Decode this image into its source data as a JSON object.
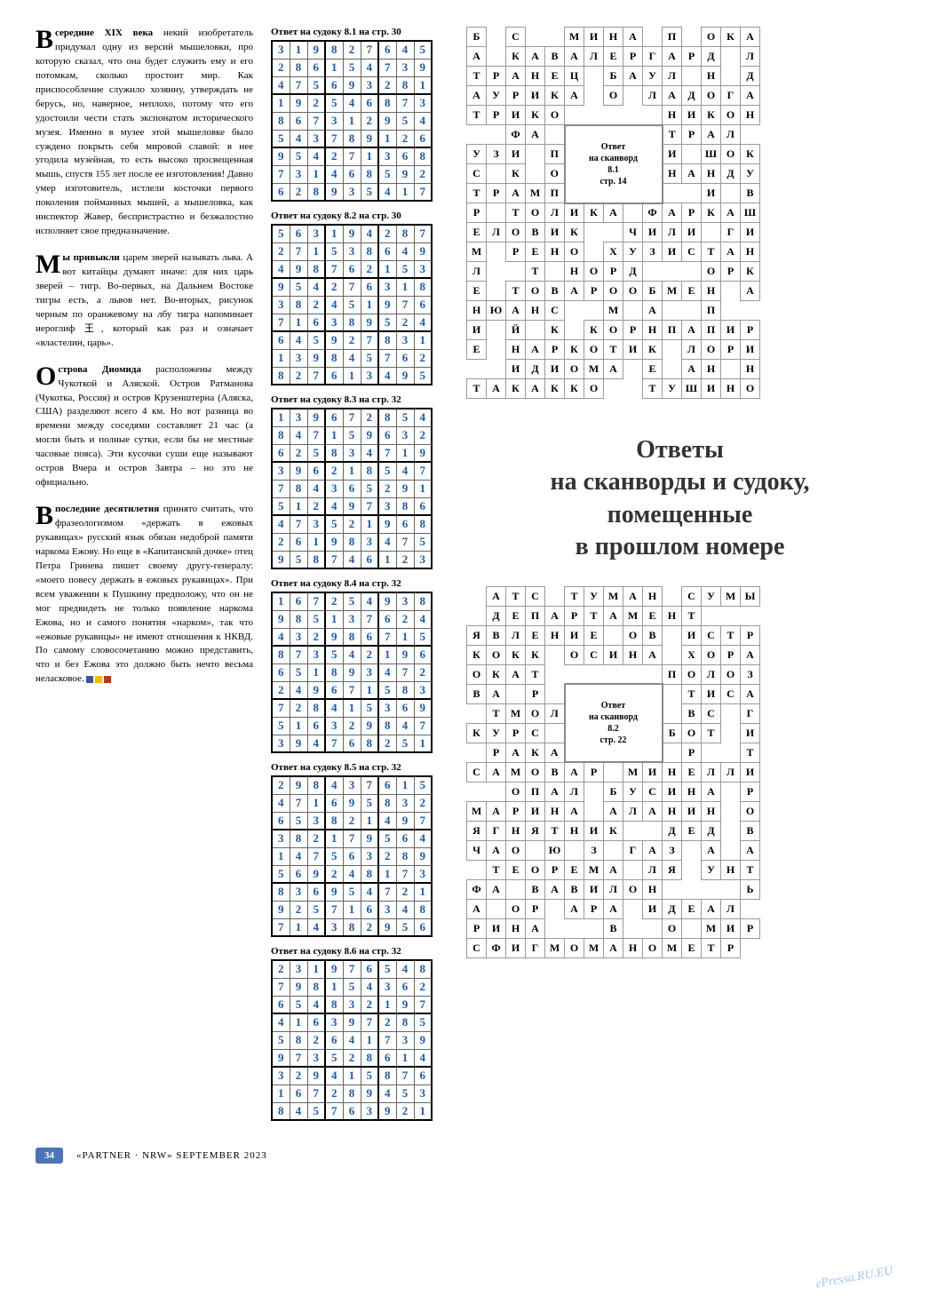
{
  "articles": [
    {
      "bold": "середине XIX века",
      "text": " некий изобретатель придумал одну из версий мышеловки, про которую сказал, что она будет служить ему и его потомкам, сколько простоит мир. Как приспособление служило хозяину, утверждать не берусь, но, наверное, неплохо, потому что его удостоили чести стать экспонатом исторического музея. Именно в музее этой мышеловке было суждено покрыть себя мировой славой: в нее угодила музейная, то есть высоко просвещенная мышь, спустя 155 лет после ее изготовления! Давно умер изготовитель, истлели косточки первого поколения пойманных мышей, а мышеловка, как инспектор Жавер, беспристрастно и безжалостно исполняет свое предназначение.",
      "dropcap": "В"
    },
    {
      "bold": "ы привыкли",
      "text": " царем зверей называть льва. А вот китайцы думают иначе: для них царь зверей – тигр. Во-первых, на Дальнем Востоке тигры есть, а львов нет. Во-вторых, рисунок черным по оранжевому на лбу тигра напоминает иероглиф 王, который как раз и означает «властелин, царь».",
      "dropcap": "М"
    },
    {
      "bold": "строва Диомида",
      "text": " расположены между Чукоткой и Аляской. Остров Ратманова (Чукотка, Россия) и остров Крузенштерна (Аляска, США) разделяют всего 4 км. Но вот разница во времени между соседями составляет 21 час (а могли быть и полные сутки, если бы не местные часовые пояса). Эти кусочки суши еще называют остров Вчера и остров Завтра – но это не официально.",
      "dropcap": "О"
    },
    {
      "bold": "последние десятилетия",
      "text": " принято считать, что фразеологизмом «держать в ежовых рукавицах» русский язык обязан недоброй памяти наркома Ежову. Но еще в «Капитанской дочке» отец Петра Гринева пишет своему другу-генералу: «моего повесу держать в ежовых рукавицах». При всем уважении к Пушкину предположу, что он не мог предвидеть не только появление наркома Ежова, но и самого понятия «нарком», так что «ежовые рукавицы» не имеют отношения к НКВД. По самому словосочетанию можно представить, что и без Ежова это должно быть нечто весьма неласковое.",
      "dropcap": "В",
      "end": true
    }
  ],
  "sudokus": [
    {
      "title": "Ответ на судоку 8.1 на стр. 30",
      "grid": [
        [
          3,
          1,
          9,
          8,
          2,
          7,
          6,
          4,
          5
        ],
        [
          2,
          8,
          6,
          1,
          5,
          4,
          7,
          3,
          9
        ],
        [
          4,
          7,
          5,
          6,
          9,
          3,
          2,
          8,
          1
        ],
        [
          1,
          9,
          2,
          5,
          4,
          6,
          8,
          7,
          3
        ],
        [
          8,
          6,
          7,
          3,
          1,
          2,
          9,
          5,
          4
        ],
        [
          5,
          4,
          3,
          7,
          8,
          9,
          1,
          2,
          6
        ],
        [
          9,
          5,
          4,
          2,
          7,
          1,
          3,
          6,
          8
        ],
        [
          7,
          3,
          1,
          4,
          6,
          8,
          5,
          9,
          2
        ],
        [
          6,
          2,
          8,
          9,
          3,
          5,
          4,
          1,
          7
        ]
      ]
    },
    {
      "title": "Ответ на судоку 8.2 на стр. 30",
      "grid": [
        [
          5,
          6,
          3,
          1,
          9,
          4,
          2,
          8,
          7
        ],
        [
          2,
          7,
          1,
          5,
          3,
          8,
          6,
          4,
          9
        ],
        [
          4,
          9,
          8,
          7,
          6,
          2,
          1,
          5,
          3
        ],
        [
          9,
          5,
          4,
          2,
          7,
          6,
          3,
          1,
          8
        ],
        [
          3,
          8,
          2,
          4,
          5,
          1,
          9,
          7,
          6
        ],
        [
          7,
          1,
          6,
          3,
          8,
          9,
          5,
          2,
          4
        ],
        [
          6,
          4,
          5,
          9,
          2,
          7,
          8,
          3,
          1
        ],
        [
          1,
          3,
          9,
          8,
          4,
          5,
          7,
          6,
          2
        ],
        [
          8,
          2,
          7,
          6,
          1,
          3,
          4,
          9,
          5
        ]
      ]
    },
    {
      "title": "Ответ на судоку 8.3 на стр. 32",
      "grid": [
        [
          1,
          3,
          9,
          6,
          7,
          2,
          8,
          5,
          4
        ],
        [
          8,
          4,
          7,
          1,
          5,
          9,
          6,
          3,
          2
        ],
        [
          6,
          2,
          5,
          8,
          3,
          4,
          7,
          1,
          9
        ],
        [
          3,
          9,
          6,
          2,
          1,
          8,
          5,
          4,
          7
        ],
        [
          7,
          8,
          4,
          3,
          6,
          5,
          2,
          9,
          1
        ],
        [
          5,
          1,
          2,
          4,
          9,
          7,
          3,
          8,
          6
        ],
        [
          4,
          7,
          3,
          5,
          2,
          1,
          9,
          6,
          8
        ],
        [
          2,
          6,
          1,
          9,
          8,
          3,
          4,
          7,
          5
        ],
        [
          9,
          5,
          8,
          7,
          4,
          6,
          1,
          2,
          3
        ]
      ]
    },
    {
      "title": "Ответ на судоку 8.4 на стр. 32",
      "grid": [
        [
          1,
          6,
          7,
          2,
          5,
          4,
          9,
          3,
          8
        ],
        [
          9,
          8,
          5,
          1,
          3,
          7,
          6,
          2,
          4
        ],
        [
          4,
          3,
          2,
          9,
          8,
          6,
          7,
          1,
          5
        ],
        [
          8,
          7,
          3,
          5,
          4,
          2,
          1,
          9,
          6
        ],
        [
          6,
          5,
          1,
          8,
          9,
          3,
          4,
          7,
          2
        ],
        [
          2,
          4,
          9,
          6,
          7,
          1,
          5,
          8,
          3
        ],
        [
          7,
          2,
          8,
          4,
          1,
          5,
          3,
          6,
          9
        ],
        [
          5,
          1,
          6,
          3,
          2,
          9,
          8,
          4,
          7
        ],
        [
          3,
          9,
          4,
          7,
          6,
          8,
          2,
          5,
          1
        ]
      ]
    },
    {
      "title": "Ответ на судоку 8.5 на стр. 32",
      "grid": [
        [
          2,
          9,
          8,
          4,
          3,
          7,
          6,
          1,
          5
        ],
        [
          4,
          7,
          1,
          6,
          9,
          5,
          8,
          3,
          2
        ],
        [
          6,
          5,
          3,
          8,
          2,
          1,
          4,
          9,
          7
        ],
        [
          3,
          8,
          2,
          1,
          7,
          9,
          5,
          6,
          4
        ],
        [
          1,
          4,
          7,
          5,
          6,
          3,
          2,
          8,
          9
        ],
        [
          5,
          6,
          9,
          2,
          4,
          8,
          1,
          7,
          3
        ],
        [
          8,
          3,
          6,
          9,
          5,
          4,
          7,
          2,
          1
        ],
        [
          9,
          2,
          5,
          7,
          1,
          6,
          3,
          4,
          8
        ],
        [
          7,
          1,
          4,
          3,
          8,
          2,
          9,
          5,
          6
        ]
      ]
    },
    {
      "title": "Ответ на судоку 8.6 на стр. 32",
      "grid": [
        [
          2,
          3,
          1,
          9,
          7,
          6,
          5,
          4,
          8
        ],
        [
          7,
          9,
          8,
          1,
          5,
          4,
          3,
          6,
          2
        ],
        [
          6,
          5,
          4,
          8,
          3,
          2,
          1,
          9,
          7
        ],
        [
          4,
          1,
          6,
          3,
          9,
          7,
          2,
          8,
          5
        ],
        [
          5,
          8,
          2,
          6,
          4,
          1,
          7,
          3,
          9
        ],
        [
          9,
          7,
          3,
          5,
          2,
          8,
          6,
          1,
          4
        ],
        [
          3,
          2,
          9,
          4,
          1,
          5,
          8,
          7,
          6
        ],
        [
          1,
          6,
          7,
          2,
          8,
          9,
          4,
          5,
          3
        ],
        [
          8,
          4,
          5,
          7,
          6,
          3,
          9,
          2,
          1
        ]
      ]
    }
  ],
  "crossword1": {
    "merged": {
      "text": "Ответ\nна сканворд\n8.1\nстр. 14",
      "row": 5,
      "col": 5,
      "rowspan": 4,
      "colspan": 5
    },
    "grid": [
      [
        "Б",
        "",
        "С",
        "",
        "",
        "М",
        "И",
        "Н",
        "А",
        "",
        "П",
        "",
        "О",
        "К",
        "А"
      ],
      [
        "А",
        "",
        "К",
        "А",
        "В",
        "А",
        "Л",
        "Е",
        "Р",
        "Г",
        "А",
        "Р",
        "Д",
        "",
        "Л"
      ],
      [
        "Т",
        "Р",
        "А",
        "Н",
        "Е",
        "Ц",
        "",
        "Б",
        "А",
        "У",
        "Л",
        "",
        "Н",
        "",
        "Д"
      ],
      [
        "А",
        "У",
        "Р",
        "И",
        "К",
        "А",
        "",
        "О",
        "",
        "Л",
        "А",
        "Д",
        "О",
        "Г",
        "А"
      ],
      [
        "Т",
        "Р",
        "И",
        "К",
        "О",
        "",
        "",
        "",
        "",
        "",
        "Н",
        "И",
        "К",
        "О",
        "Н"
      ],
      [
        "",
        "",
        "Ф",
        "А",
        "",
        "",
        "",
        "",
        "",
        "",
        "Т",
        "Р",
        "А",
        "Л",
        ""
      ],
      [
        "У",
        "З",
        "И",
        "",
        "П",
        "",
        "",
        "",
        "",
        "",
        "И",
        "",
        "Ш",
        "О",
        "К"
      ],
      [
        "С",
        "",
        "К",
        "",
        "О",
        "",
        "",
        "",
        "",
        "",
        "Н",
        "А",
        "Н",
        "Д",
        "У"
      ],
      [
        "Т",
        "Р",
        "А",
        "М",
        "П",
        "",
        "",
        "",
        "",
        "",
        "",
        "",
        "И",
        "",
        "В"
      ],
      [
        "Р",
        "",
        "Т",
        "О",
        "Л",
        "И",
        "К",
        "А",
        "",
        "Ф",
        "А",
        "Р",
        "К",
        "А",
        "Ш"
      ],
      [
        "Е",
        "Л",
        "О",
        "В",
        "И",
        "К",
        "",
        "",
        "Ч",
        "И",
        "Л",
        "И",
        "",
        "Г",
        "И"
      ],
      [
        "М",
        "",
        "Р",
        "Е",
        "Н",
        "О",
        "",
        "Х",
        "У",
        "З",
        "И",
        "С",
        "Т",
        "А",
        "Н"
      ],
      [
        "Л",
        "",
        "",
        "Т",
        "",
        "Н",
        "О",
        "Р",
        "Д",
        "",
        "",
        "",
        "О",
        "Р",
        "К"
      ],
      [
        "Е",
        "",
        "Т",
        "О",
        "В",
        "А",
        "Р",
        "О",
        "О",
        "Б",
        "М",
        "Е",
        "Н",
        "",
        "А"
      ],
      [
        "Н",
        "Ю",
        "А",
        "Н",
        "С",
        "",
        "",
        "М",
        "",
        "А",
        "",
        "",
        "П",
        "",
        ""
      ],
      [
        "И",
        "",
        "Й",
        "",
        "К",
        "",
        "К",
        "О",
        "Р",
        "Н",
        "П",
        "А",
        "П",
        "И",
        "Р"
      ],
      [
        "Е",
        "",
        "Н",
        "А",
        "Р",
        "К",
        "О",
        "Т",
        "И",
        "К",
        "",
        "Л",
        "О",
        "Р",
        "И"
      ],
      [
        "",
        "",
        "И",
        "Д",
        "И",
        "О",
        "М",
        "А",
        "",
        "Е",
        "",
        "А",
        "Н",
        "",
        "Н"
      ],
      [
        "Т",
        "А",
        "К",
        "А",
        "К",
        "К",
        "О",
        "",
        "",
        "Т",
        "У",
        "Ш",
        "И",
        "Н",
        "О"
      ]
    ]
  },
  "crossword2": {
    "merged": {
      "text": "Ответ\nна сканворд\n8.2\nстр. 22",
      "row": 5,
      "col": 5,
      "rowspan": 4,
      "colspan": 5
    },
    "grid": [
      [
        "",
        "А",
        "Т",
        "С",
        "",
        "Т",
        "У",
        "М",
        "А",
        "Н",
        "",
        "С",
        "У",
        "М",
        "Ы"
      ],
      [
        "",
        "Д",
        "Е",
        "П",
        "А",
        "Р",
        "Т",
        "А",
        "М",
        "Е",
        "Н",
        "Т",
        "",
        "",
        ""
      ],
      [
        "Я",
        "В",
        "Л",
        "Е",
        "Н",
        "И",
        "Е",
        "",
        "О",
        "В",
        "",
        "И",
        "С",
        "Т",
        "Р"
      ],
      [
        "К",
        "О",
        "К",
        "К",
        "",
        "О",
        "С",
        "И",
        "Н",
        "А",
        "",
        "Х",
        "О",
        "Р",
        "А"
      ],
      [
        "О",
        "К",
        "А",
        "Т",
        "",
        "",
        "",
        "",
        "",
        "",
        "П",
        "О",
        "Л",
        "О",
        "З"
      ],
      [
        "В",
        "А",
        "",
        "Р",
        "",
        "",
        "",
        "",
        "",
        "",
        "",
        "Т",
        "И",
        "С",
        "А"
      ],
      [
        "",
        "Т",
        "М",
        "О",
        "Л",
        "",
        "",
        "",
        "",
        "",
        "",
        "В",
        "С",
        "",
        "Г"
      ],
      [
        "К",
        "У",
        "Р",
        "С",
        "",
        "",
        "",
        "",
        "",
        "",
        "Б",
        "О",
        "Т",
        "",
        "И"
      ],
      [
        "",
        "Р",
        "А",
        "К",
        "А",
        "",
        "",
        "",
        "",
        "",
        "",
        "Р",
        "",
        "",
        "Т"
      ],
      [
        "С",
        "А",
        "М",
        "О",
        "В",
        "А",
        "Р",
        "",
        "М",
        "И",
        "Н",
        "Е",
        "Л",
        "Л",
        "И"
      ],
      [
        "",
        "",
        "О",
        "П",
        "А",
        "Л",
        "",
        "Б",
        "У",
        "С",
        "И",
        "Н",
        "А",
        "",
        "Р"
      ],
      [
        "М",
        "А",
        "Р",
        "И",
        "Н",
        "А",
        "",
        "А",
        "Л",
        "А",
        "Н",
        "И",
        "Н",
        "",
        "О"
      ],
      [
        "Я",
        "Г",
        "Н",
        "Я",
        "Т",
        "Н",
        "И",
        "К",
        "",
        "",
        "Д",
        "Е",
        "Д",
        "",
        "В"
      ],
      [
        "Ч",
        "А",
        "О",
        "",
        "Ю",
        "",
        "З",
        "",
        "Г",
        "А",
        "З",
        "",
        "А",
        "",
        "А"
      ],
      [
        "",
        "Т",
        "Е",
        "О",
        "Р",
        "Е",
        "М",
        "А",
        "",
        "Л",
        "Я",
        "",
        "У",
        "Н",
        "Т"
      ],
      [
        "Ф",
        "А",
        "",
        "В",
        "А",
        "В",
        "И",
        "Л",
        "О",
        "Н",
        "",
        "",
        "",
        "",
        "Ь"
      ],
      [
        "А",
        "",
        "О",
        "Р",
        "",
        "А",
        "Р",
        "А",
        "",
        "И",
        "Д",
        "Е",
        "А",
        "Л",
        ""
      ],
      [
        "Р",
        "И",
        "Н",
        "А",
        "",
        "",
        "",
        "В",
        "",
        "",
        "О",
        "",
        "М",
        "И",
        "Р"
      ],
      [
        "С",
        "Ф",
        "И",
        "Г",
        "М",
        "О",
        "М",
        "А",
        "Н",
        "О",
        "М",
        "Е",
        "Т",
        "Р",
        ""
      ]
    ]
  },
  "main_title": [
    "Ответы",
    "на сканворды и судоку,",
    "помещенные",
    "в прошлом номере"
  ],
  "footer": {
    "page": "34",
    "pub": "«PARTNER · NRW» SEPTEMBER 2023"
  },
  "watermark": "ePressa.RU.EU"
}
